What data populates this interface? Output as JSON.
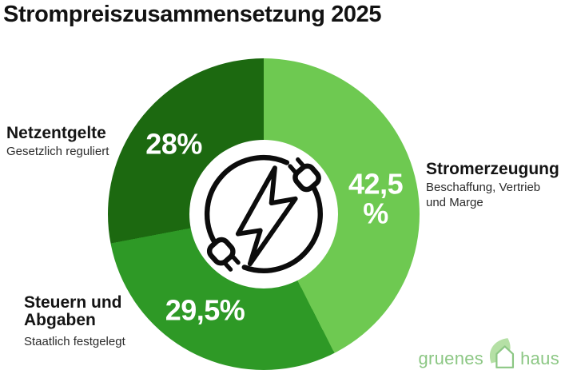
{
  "title": "Strompreiszusammensetzung 2025",
  "chart_data": {
    "type": "pie",
    "variant": "donut",
    "title": "Strompreiszusammensetzung 2025",
    "unit": "%",
    "direction": "clockwise",
    "start_angle_deg": 0,
    "legend": "none",
    "center_icon": "power-plug-cable-circle-with-lightning-bolt",
    "slices": [
      {
        "name": "Stromerzeugung",
        "description": "Beschaffung, Vertrieb und Marge",
        "value": 42.5,
        "label": "42,5\n%",
        "color": "#6EC951",
        "label_color": "#FFFFFF"
      },
      {
        "name": "Steuern und Abgaben",
        "description": "Staatlich festgelegt",
        "value": 29.5,
        "label": "29,5%",
        "color": "#2E9926",
        "label_color": "#FFFFFF"
      },
      {
        "name": "Netzentgelte",
        "description": "Gesetzlich reguliert",
        "value": 28,
        "label": "28%",
        "color": "#1C6910",
        "label_color": "#FFFFFF"
      }
    ]
  },
  "branding": {
    "logo_text_left": "gruenes",
    "logo_text_right": "haus",
    "logo_color": "#8CC784",
    "leaf_color": "#B5E0A5"
  }
}
